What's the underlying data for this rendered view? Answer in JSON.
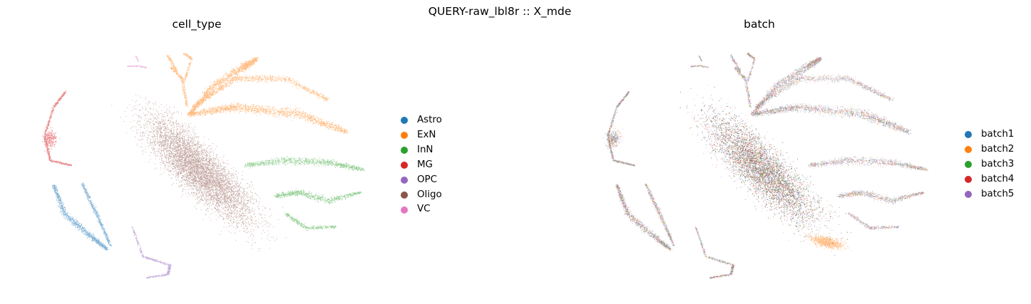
{
  "figure": {
    "suptitle": "QUERY-raw_lbl8r :: X_mde"
  },
  "chart_data": [
    {
      "type": "scatter",
      "title": "cell_type",
      "xlabel": "",
      "ylabel": "",
      "grid": false,
      "axes_visible": false,
      "legend_position": "right",
      "series": [
        {
          "name": "Astro",
          "color": "#1f77b4"
        },
        {
          "name": "ExN",
          "color": "#ff7f0e"
        },
        {
          "name": "InN",
          "color": "#2ca02c"
        },
        {
          "name": "MG",
          "color": "#d62728"
        },
        {
          "name": "OPC",
          "color": "#9467bd"
        },
        {
          "name": "Oligo",
          "color": "#8c564b"
        },
        {
          "name": "VC",
          "color": "#e377c2"
        }
      ]
    },
    {
      "type": "scatter",
      "title": "batch",
      "xlabel": "",
      "ylabel": "",
      "grid": false,
      "axes_visible": false,
      "legend_position": "right",
      "series": [
        {
          "name": "batch1",
          "color": "#1f77b4"
        },
        {
          "name": "batch2",
          "color": "#ff7f0e"
        },
        {
          "name": "batch3",
          "color": "#2ca02c"
        },
        {
          "name": "batch4",
          "color": "#d62728"
        },
        {
          "name": "batch5",
          "color": "#9467bd"
        }
      ]
    }
  ]
}
